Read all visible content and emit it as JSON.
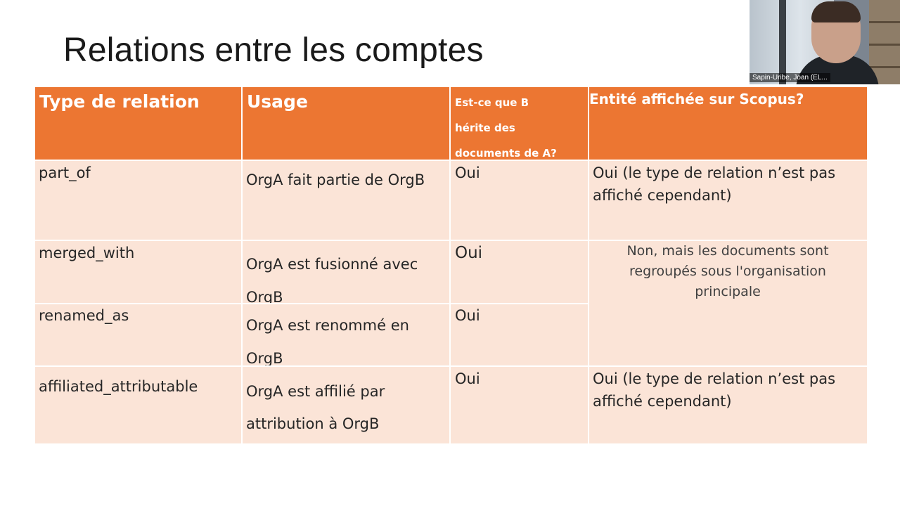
{
  "slide": {
    "title": "Relations entre les comptes"
  },
  "table": {
    "headers": {
      "type": "Type de relation",
      "usage": "Usage",
      "herite": "Est-ce que B\nhérite des\ndocuments de A?",
      "entite": "Entité affichée sur Scopus?"
    },
    "rows": [
      {
        "type": "part_of",
        "usage": "OrgA fait partie de OrgB",
        "herite": "Oui",
        "entite": "Oui (le type de relation n’est pas affiché cependant)"
      },
      {
        "type": "merged_with",
        "usage": "OrgA est fusionné avec OrgB",
        "herite": "Oui"
      },
      {
        "type": "renamed_as",
        "usage": "OrgA est renommé en OrgB",
        "herite": "Oui"
      },
      {
        "type": "affiliated_attributable",
        "usage": "OrgA est affilié par attribution à OrgB",
        "herite": "Oui",
        "entite": "Oui (le type de relation n’est pas affiché cependant)"
      }
    ],
    "merged_note": "Non, mais les documents sont regroupés sous l'organisation principale"
  },
  "participant": {
    "name": "Sapin-Uribe, Joan (EL..."
  },
  "colors": {
    "header": "#ec7632",
    "row": "#fbe4d7",
    "header_text": "#ffffff"
  }
}
